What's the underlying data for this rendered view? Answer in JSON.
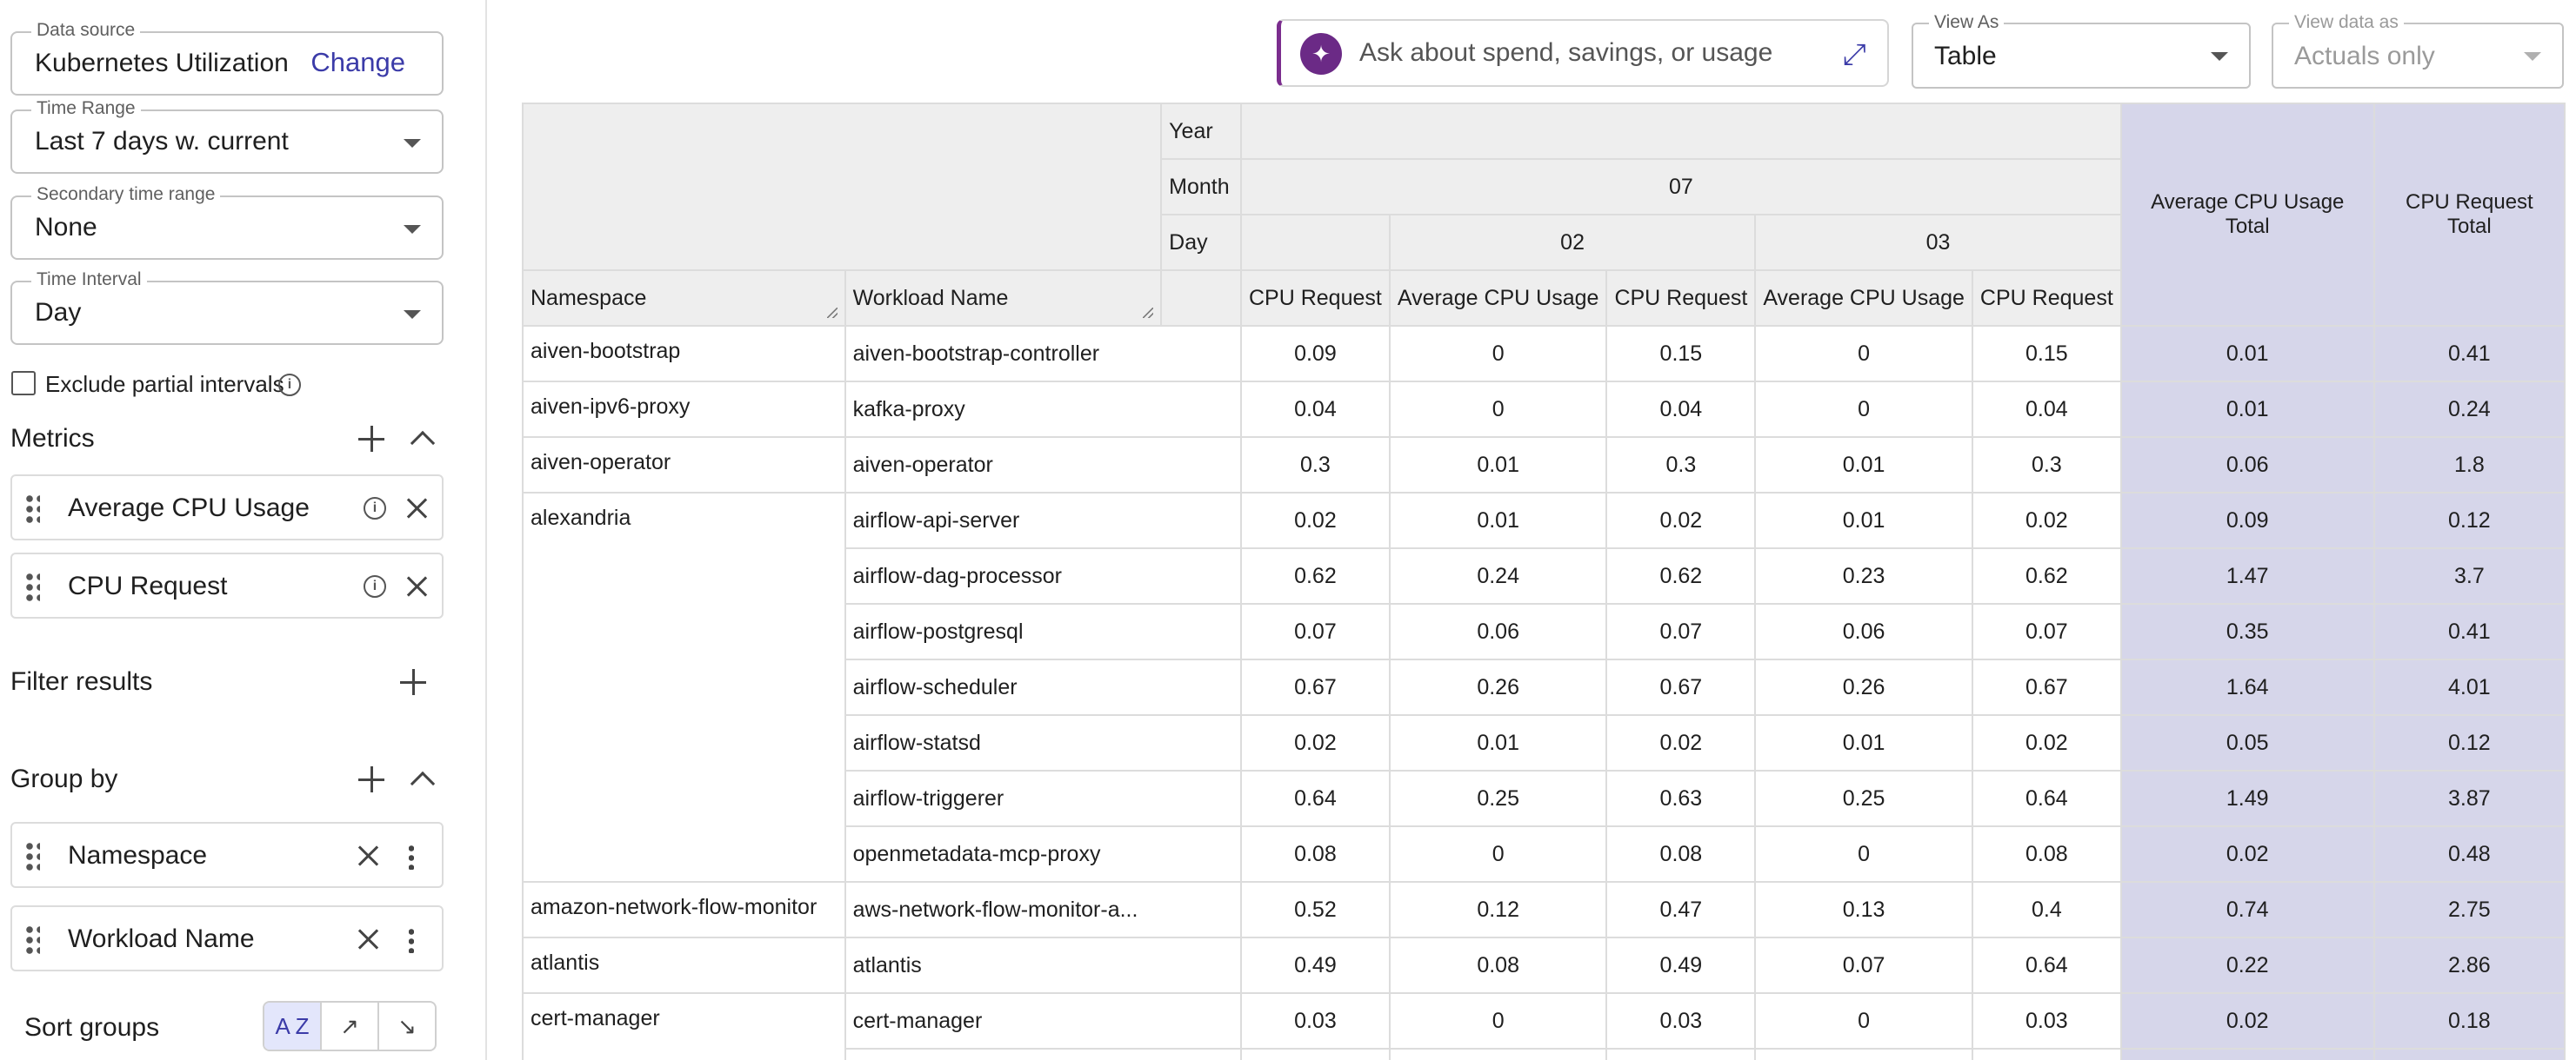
{
  "sidebar": {
    "data_source": {
      "label": "Data source",
      "value": "Kubernetes Utilization",
      "change": "Change"
    },
    "time_range": {
      "label": "Time Range",
      "value": "Last 7 days w. current"
    },
    "secondary_range": {
      "label": "Secondary time range",
      "value": "None"
    },
    "time_interval": {
      "label": "Time Interval",
      "value": "Day"
    },
    "exclude_partial": "Exclude partial intervals",
    "metrics": {
      "title": "Metrics",
      "items": [
        {
          "label": "Average CPU Usage"
        },
        {
          "label": "CPU Request"
        }
      ]
    },
    "filter_title": "Filter results",
    "group_by": {
      "title": "Group by",
      "items": [
        {
          "label": "Namespace"
        },
        {
          "label": "Workload Name"
        }
      ]
    },
    "sort_groups": {
      "label": "Sort groups",
      "az": "A Z",
      "asc": "↗",
      "desc": "↘"
    }
  },
  "topbar": {
    "ask_placeholder": "Ask about spend, savings, or usage",
    "view_as": {
      "label": "View As",
      "value": "Table"
    },
    "view_data_as": {
      "label": "View data as",
      "value": "Actuals only"
    }
  },
  "table": {
    "year_label": "Year",
    "month_label": "Month",
    "day_label": "Day",
    "month_value": "07",
    "day1": "02",
    "day2": "03",
    "col_namespace": "Namespace",
    "col_workload": "Workload Name",
    "col_cpu_request": "CPU Request",
    "col_avg_cpu": "Average CPU Usage",
    "col_total_avg": "Average CPU Usage Total",
    "col_total_req": "CPU Request Total",
    "rows": [
      {
        "ns": "aiven-bootstrap",
        "wl": "aiven-bootstrap-controller",
        "v": [
          "0.09",
          "0",
          "0.15",
          "0",
          "0.15",
          "0.01",
          "0.41"
        ]
      },
      {
        "ns": "aiven-ipv6-proxy",
        "wl": "kafka-proxy",
        "v": [
          "0.04",
          "0",
          "0.04",
          "0",
          "0.04",
          "0.01",
          "0.24"
        ]
      },
      {
        "ns": "aiven-operator",
        "wl": "aiven-operator",
        "v": [
          "0.3",
          "0.01",
          "0.3",
          "0.01",
          "0.3",
          "0.06",
          "1.8"
        ]
      },
      {
        "ns": "alexandria",
        "wl": "airflow-api-server",
        "v": [
          "0.02",
          "0.01",
          "0.02",
          "0.01",
          "0.02",
          "0.09",
          "0.12"
        ]
      },
      {
        "ns": "",
        "wl": "airflow-dag-processor",
        "v": [
          "0.62",
          "0.24",
          "0.62",
          "0.23",
          "0.62",
          "1.47",
          "3.7"
        ]
      },
      {
        "ns": "",
        "wl": "airflow-postgresql",
        "v": [
          "0.07",
          "0.06",
          "0.07",
          "0.06",
          "0.07",
          "0.35",
          "0.41"
        ]
      },
      {
        "ns": "",
        "wl": "airflow-scheduler",
        "v": [
          "0.67",
          "0.26",
          "0.67",
          "0.26",
          "0.67",
          "1.64",
          "4.01"
        ]
      },
      {
        "ns": "",
        "wl": "airflow-statsd",
        "v": [
          "0.02",
          "0.01",
          "0.02",
          "0.01",
          "0.02",
          "0.05",
          "0.12"
        ]
      },
      {
        "ns": "",
        "wl": "airflow-triggerer",
        "v": [
          "0.64",
          "0.25",
          "0.63",
          "0.25",
          "0.64",
          "1.49",
          "3.87"
        ]
      },
      {
        "ns": "",
        "wl": "openmetadata-mcp-proxy",
        "v": [
          "0.08",
          "0",
          "0.08",
          "0",
          "0.08",
          "0.02",
          "0.48"
        ]
      },
      {
        "ns": "amazon-network-flow-monitor",
        "wl": "aws-network-flow-monitor-a...",
        "v": [
          "0.52",
          "0.12",
          "0.47",
          "0.13",
          "0.4",
          "0.74",
          "2.75"
        ]
      },
      {
        "ns": "atlantis",
        "wl": "atlantis",
        "v": [
          "0.49",
          "0.08",
          "0.49",
          "0.07",
          "0.64",
          "0.22",
          "2.86"
        ]
      },
      {
        "ns": "cert-manager",
        "wl": "cert-manager",
        "v": [
          "0.03",
          "0",
          "0.03",
          "0",
          "0.03",
          "0.02",
          "0.18"
        ]
      },
      {
        "ns": "",
        "wl": "",
        "v": [
          "",
          "",
          "",
          "",
          "",
          "",
          ""
        ]
      }
    ]
  }
}
